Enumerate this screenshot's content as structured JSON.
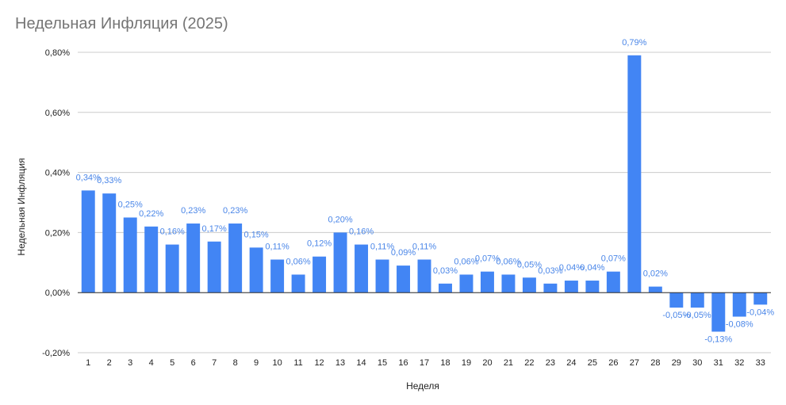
{
  "chart_data": {
    "type": "bar",
    "title": "Недельная Инфляция (2025)",
    "xlabel": "Неделя",
    "ylabel": "Недельная Инфляция",
    "ylim": [
      -0.2,
      0.8
    ],
    "yticks": [
      -0.2,
      0.0,
      0.2,
      0.4,
      0.6,
      0.8
    ],
    "ytick_labels": [
      "-0,20%",
      "0,00%",
      "0,20%",
      "0,40%",
      "0,60%",
      "0,80%"
    ],
    "grid": true,
    "bar_color": "#4285f4",
    "label_color": "#4a86e8",
    "categories": [
      "1",
      "2",
      "3",
      "4",
      "5",
      "6",
      "7",
      "8",
      "9",
      "10",
      "11",
      "12",
      "13",
      "14",
      "15",
      "16",
      "17",
      "18",
      "19",
      "20",
      "21",
      "22",
      "23",
      "24",
      "25",
      "26",
      "27",
      "28",
      "29",
      "30",
      "31",
      "32",
      "33"
    ],
    "values": [
      0.34,
      0.33,
      0.25,
      0.22,
      0.16,
      0.23,
      0.17,
      0.23,
      0.15,
      0.11,
      0.06,
      0.12,
      0.2,
      0.16,
      0.11,
      0.09,
      0.11,
      0.03,
      0.06,
      0.07,
      0.06,
      0.05,
      0.03,
      0.04,
      0.04,
      0.07,
      0.79,
      0.02,
      -0.05,
      -0.05,
      -0.13,
      -0.08,
      -0.04
    ],
    "data_labels": [
      "0,34%",
      "0,33%",
      "0,25%",
      "0,22%",
      "0,16%",
      "0,23%",
      "0,17%",
      "0,23%",
      "0,15%",
      "0,11%",
      "0,06%",
      "0,12%",
      "0,20%",
      "0,16%",
      "0,11%",
      "0,09%",
      "0,11%",
      "0,03%",
      "0,06%",
      "0,07%",
      "0,06%",
      "0,05%",
      "0,03%",
      "0,04%",
      "0,04%",
      "0,07%",
      "0,79%",
      "0,02%",
      "-0,05%",
      "-0,05%",
      "-0,13%",
      "-0,08%",
      "-0,04%"
    ]
  }
}
